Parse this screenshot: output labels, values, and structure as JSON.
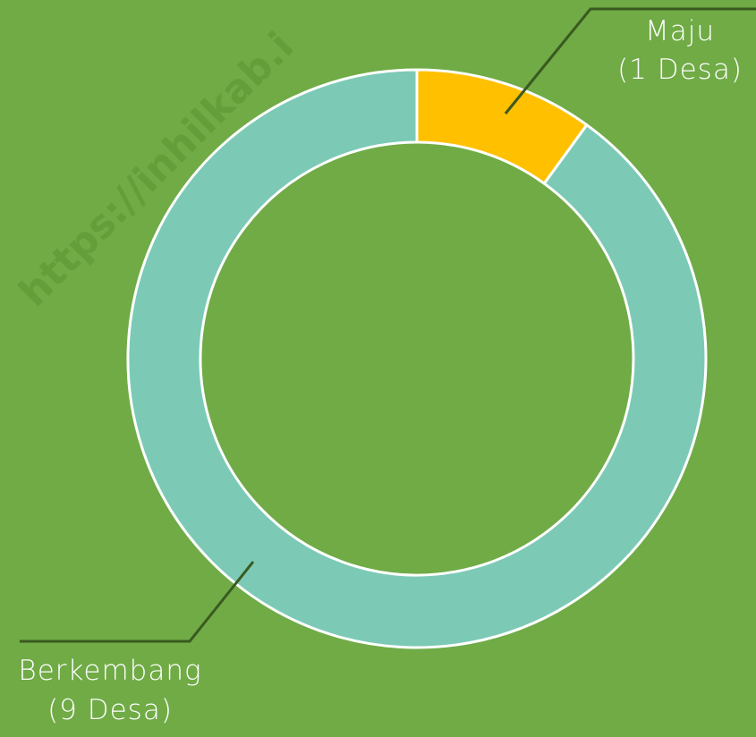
{
  "chart_data": {
    "type": "donut",
    "watermark": "https://inhilkab.i",
    "categories": [
      "Maju",
      "Berkembang"
    ],
    "values": [
      1,
      9
    ],
    "value_labels": [
      "(1 Desa)",
      "(9 Desa)"
    ],
    "colors": [
      "#ffc000",
      "#7ccab5"
    ]
  }
}
